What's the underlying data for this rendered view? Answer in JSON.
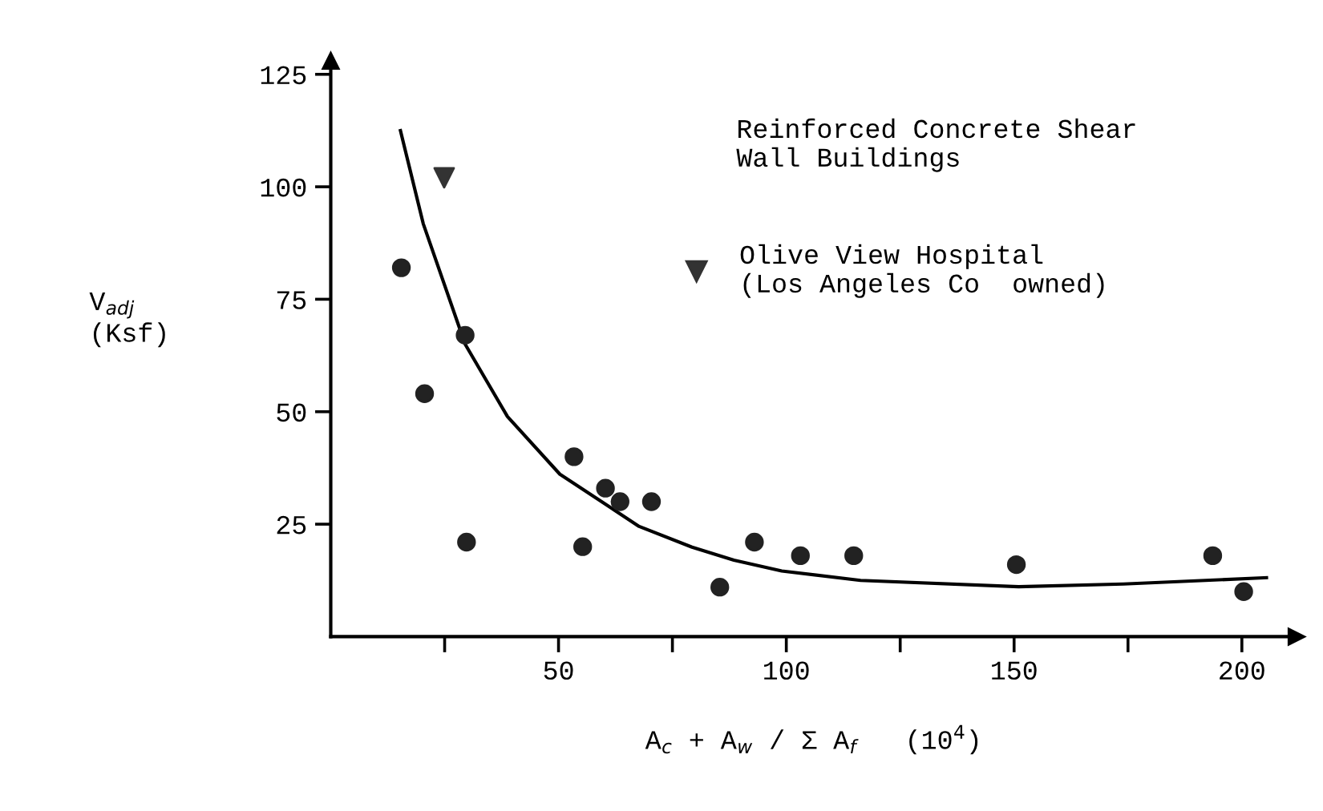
{
  "chart_data": {
    "type": "scatter",
    "xlabel": "A$_{c}$ + A$_{w}$ / Σ A$_{f}$   (10$^{4}$)",
    "ylabel": "V$_{adj}$\n(Ksf)",
    "annotations": [
      "Reinforced Concrete Shear\nWall Buildings"
    ],
    "series": [
      {
        "marker": "circle",
        "color": "#222222",
        "x": [
          15.5,
          20.6,
          29.5,
          29.8,
          53.4,
          55.3,
          60.3,
          63.5,
          70.4,
          85.4,
          93,
          103.1,
          114.8,
          150.5,
          193.6,
          200.4
        ],
        "values": [
          82,
          54,
          67,
          21,
          40,
          20,
          33,
          30,
          30,
          11,
          21,
          18,
          18,
          16,
          18,
          10
        ]
      },
      {
        "marker": "triangle",
        "name": "Olive View Hospital\n(Los Angeles Co  owned)",
        "color": "#333333",
        "x": [
          24.9
        ],
        "values": [
          102
        ]
      },
      {
        "type": "line",
        "marker": "none",
        "color": "#000000",
        "x": [
          15.3,
          20.3,
          29.5,
          38.8,
          50.3,
          67.7,
          79.3,
          88.5,
          99,
          116.3,
          151,
          174,
          205.4
        ],
        "values": [
          112.5,
          91.8,
          65,
          48.9,
          36.1,
          24.5,
          19.9,
          17,
          14.6,
          12.5,
          11.1,
          11.7,
          13.1
        ]
      }
    ],
    "xlim": [
      0,
      212
    ],
    "ylim": [
      0,
      128
    ],
    "xticks": [
      {
        "value": 25,
        "label": null
      },
      50,
      {
        "value": 75,
        "label": null
      },
      100,
      {
        "value": 125,
        "label": null
      },
      150,
      {
        "value": 175,
        "label": null
      },
      200
    ],
    "yticks": [
      25,
      50,
      75,
      100,
      125
    ],
    "grid": false,
    "legend": "top right"
  }
}
